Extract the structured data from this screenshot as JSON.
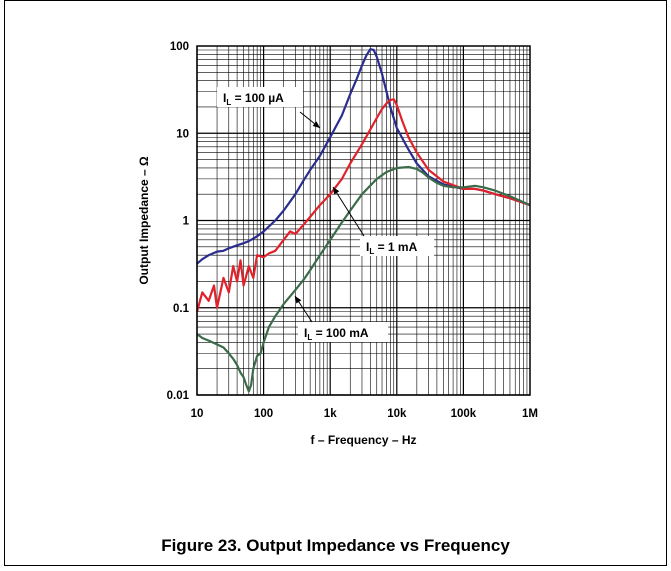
{
  "caption": "Figure 23.  Output Impedance vs Frequency",
  "chart_data": {
    "type": "line",
    "xlabel": "f – Frequency – Hz",
    "ylabel": "Output Impedance – Ω",
    "xscale": "log",
    "yscale": "log",
    "xlim": [
      10,
      1000000
    ],
    "ylim": [
      0.01,
      100
    ],
    "grid": true,
    "x_ticks": [
      {
        "value": 10,
        "label": "10"
      },
      {
        "value": 100,
        "label": "100"
      },
      {
        "value": 1000,
        "label": "1k"
      },
      {
        "value": 10000,
        "label": "10k"
      },
      {
        "value": 100000,
        "label": "100k"
      },
      {
        "value": 1000000,
        "label": "1M"
      }
    ],
    "y_ticks": [
      {
        "value": 0.01,
        "label": "0.01"
      },
      {
        "value": 0.1,
        "label": "0.1"
      },
      {
        "value": 1,
        "label": "1"
      },
      {
        "value": 10,
        "label": "10"
      },
      {
        "value": 100,
        "label": "100"
      }
    ],
    "series": [
      {
        "name": "IL = 100 µA",
        "color": "#2b2d8e",
        "x": [
          10,
          12,
          15,
          20,
          25,
          30,
          40,
          50,
          60,
          70,
          80,
          100,
          150,
          200,
          300,
          400,
          500,
          700,
          1000,
          1500,
          2000,
          2500,
          3000,
          3500,
          4000,
          4500,
          5000,
          6000,
          7000,
          8000,
          10000,
          15000,
          20000,
          30000,
          50000,
          100000,
          150000,
          200000,
          300000,
          500000,
          1000000
        ],
        "y": [
          0.32,
          0.36,
          0.4,
          0.44,
          0.45,
          0.48,
          0.52,
          0.55,
          0.58,
          0.62,
          0.66,
          0.75,
          1.0,
          1.3,
          2.0,
          2.9,
          3.8,
          5.5,
          9.0,
          16,
          28,
          42,
          60,
          78,
          92,
          90,
          75,
          48,
          30,
          20,
          11.5,
          6.5,
          4.5,
          3.2,
          2.6,
          2.3,
          2.3,
          2.2,
          2.0,
          1.8,
          1.5
        ]
      },
      {
        "name": "IL = 1 mA",
        "color": "#e0222a",
        "x": [
          10,
          12,
          15,
          18,
          20,
          25,
          30,
          35,
          40,
          45,
          50,
          60,
          70,
          80,
          100,
          120,
          150,
          200,
          250,
          300,
          400,
          500,
          700,
          1000,
          1500,
          2000,
          3000,
          4000,
          5000,
          6000,
          7000,
          8000,
          9000,
          10000,
          12000,
          15000,
          20000,
          30000,
          50000,
          100000,
          150000,
          200000,
          300000,
          500000,
          1000000
        ],
        "y": [
          0.09,
          0.15,
          0.12,
          0.18,
          0.1,
          0.22,
          0.15,
          0.3,
          0.2,
          0.35,
          0.18,
          0.3,
          0.22,
          0.4,
          0.38,
          0.42,
          0.45,
          0.6,
          0.75,
          0.7,
          0.9,
          1.1,
          1.5,
          2.0,
          3.0,
          4.5,
          7.5,
          11,
          15,
          19,
          22,
          24,
          24.5,
          21,
          14,
          9,
          6,
          3.8,
          2.8,
          2.3,
          2.3,
          2.2,
          2.0,
          1.8,
          1.5
        ]
      },
      {
        "name": "IL = 100 mA",
        "color": "#3c6b4a",
        "x": [
          10,
          12,
          15,
          20,
          25,
          30,
          35,
          40,
          45,
          50,
          55,
          60,
          65,
          70,
          80,
          90,
          100,
          120,
          150,
          200,
          300,
          400,
          500,
          700,
          1000,
          1500,
          2000,
          3000,
          5000,
          7000,
          10000,
          15000,
          20000,
          25000,
          30000,
          40000,
          50000,
          70000,
          100000,
          150000,
          200000,
          300000,
          500000,
          1000000
        ],
        "y": [
          0.05,
          0.045,
          0.042,
          0.038,
          0.035,
          0.03,
          0.026,
          0.022,
          0.018,
          0.016,
          0.013,
          0.011,
          0.013,
          0.02,
          0.028,
          0.03,
          0.04,
          0.06,
          0.08,
          0.11,
          0.16,
          0.21,
          0.27,
          0.4,
          0.6,
          0.95,
          1.3,
          2.0,
          3.0,
          3.6,
          4.0,
          4.1,
          3.9,
          3.5,
          3.1,
          2.7,
          2.5,
          2.4,
          2.4,
          2.5,
          2.4,
          2.2,
          1.9,
          1.5
        ]
      }
    ],
    "annotations": [
      {
        "main": "I",
        "sub": "L",
        "rest": " = 100 µA",
        "series": 0
      },
      {
        "main": "I",
        "sub": "L",
        "rest": " = 1 mA",
        "series": 1
      },
      {
        "main": "I",
        "sub": "L",
        "rest": " = 100 mA",
        "series": 2
      }
    ]
  }
}
